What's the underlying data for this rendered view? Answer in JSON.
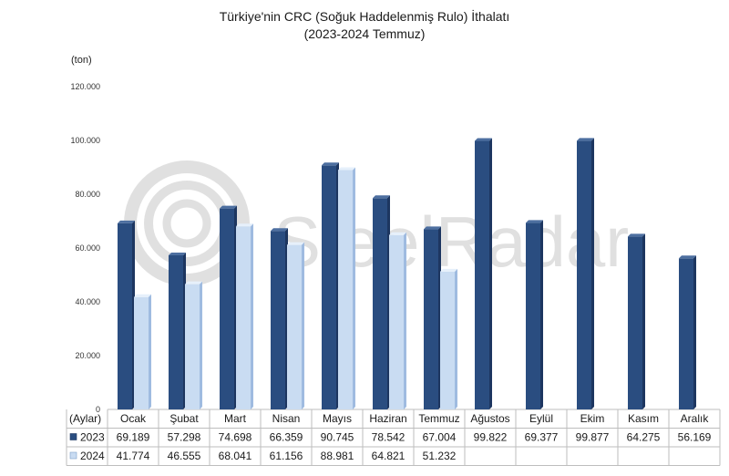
{
  "title_line1": "Türkiye'nin CRC (Soğuk Haddelenmiş Rulo) İthalatı",
  "title_line2": "(2023-2024 Temmuz)",
  "unit_label": "(ton)",
  "watermark": "SteelRadar",
  "colors": {
    "s2023": "#2a4d80",
    "s2024": "#c9dcf2",
    "grid": "#e3e3e3"
  },
  "chart_data": {
    "type": "bar",
    "title": "Türkiye'nin CRC (Soğuk Haddelenmiş Rulo) İthalatı",
    "subtitle": "(2023-2024 Temmuz)",
    "ylabel": "(ton)",
    "xlabel": "(Aylar)",
    "ylim": [
      0,
      120000
    ],
    "yticks": [
      0,
      20000,
      40000,
      60000,
      80000,
      100000,
      120000
    ],
    "ytick_labels": [
      "0",
      "20.000",
      "40.000",
      "60.000",
      "80.000",
      "100.000",
      "120.000"
    ],
    "grid": false,
    "legend": "data-table",
    "categories": [
      "Ocak",
      "Şubat",
      "Mart",
      "Nisan",
      "Mayıs",
      "Haziran",
      "Temmuz",
      "Ağustos",
      "Eylül",
      "Ekim",
      "Kasım",
      "Aralık"
    ],
    "series": [
      {
        "name": "2023",
        "values": [
          69189,
          57298,
          74698,
          66359,
          90745,
          78542,
          67004,
          99822,
          69377,
          99877,
          64275,
          56169
        ],
        "labels": [
          "69.189",
          "57.298",
          "74.698",
          "66.359",
          "90.745",
          "78.542",
          "67.004",
          "99.822",
          "69.377",
          "99.877",
          "64.275",
          "56.169"
        ]
      },
      {
        "name": "2024",
        "values": [
          41774,
          46555,
          68041,
          61156,
          88981,
          64821,
          51232,
          null,
          null,
          null,
          null,
          null
        ],
        "labels": [
          "41.774",
          "46.555",
          "68.041",
          "61.156",
          "88.981",
          "64.821",
          "51.232",
          "",
          "",
          "",
          "",
          ""
        ]
      }
    ]
  }
}
